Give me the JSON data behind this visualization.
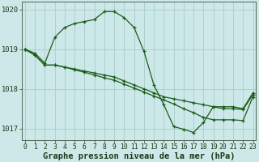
{
  "title": "Graphe pression niveau de la mer (hPa)",
  "background_color": "#cce8e8",
  "grid_color": "#aacccc",
  "line_color": "#1a5c1a",
  "hours": [
    0,
    1,
    2,
    3,
    4,
    5,
    6,
    7,
    8,
    9,
    10,
    11,
    12,
    13,
    14,
    15,
    16,
    17,
    18,
    19,
    20,
    21,
    22,
    23
  ],
  "x_labels": [
    "0",
    "1",
    "2",
    "3",
    "4",
    "5",
    "6",
    "7",
    "8",
    "9",
    "10",
    "11",
    "12",
    "13",
    "14",
    "15",
    "16",
    "17",
    "18",
    "19",
    "20",
    "21",
    "22",
    "23"
  ],
  "line1": [
    1019.0,
    1018.9,
    1018.65,
    1019.3,
    1019.55,
    1019.65,
    1019.7,
    1019.75,
    1019.95,
    1019.95,
    1019.8,
    1019.55,
    1018.95,
    1018.1,
    1017.6,
    1017.05,
    1016.98,
    1016.9,
    1017.15,
    1017.55,
    1017.55,
    1017.55,
    1017.5,
    1017.9
  ],
  "line2": [
    1019.0,
    1018.85,
    1018.6,
    1018.6,
    1018.55,
    1018.5,
    1018.45,
    1018.4,
    1018.35,
    1018.3,
    1018.2,
    1018.1,
    1018.0,
    1017.9,
    1017.8,
    1017.75,
    1017.7,
    1017.65,
    1017.6,
    1017.55,
    1017.5,
    1017.5,
    1017.48,
    1017.85
  ],
  "line3": [
    1019.0,
    1018.85,
    1018.6,
    1018.6,
    1018.55,
    1018.48,
    1018.42,
    1018.35,
    1018.28,
    1018.22,
    1018.12,
    1018.02,
    1017.92,
    1017.82,
    1017.72,
    1017.62,
    1017.5,
    1017.4,
    1017.28,
    1017.22,
    1017.22,
    1017.22,
    1017.2,
    1017.8
  ],
  "ylim": [
    1016.7,
    1020.2
  ],
  "yticks": [
    1017,
    1018,
    1019,
    1020
  ],
  "xlim": [
    -0.3,
    23.3
  ],
  "title_fontsize": 7.5,
  "tick_fontsize": 5.8
}
